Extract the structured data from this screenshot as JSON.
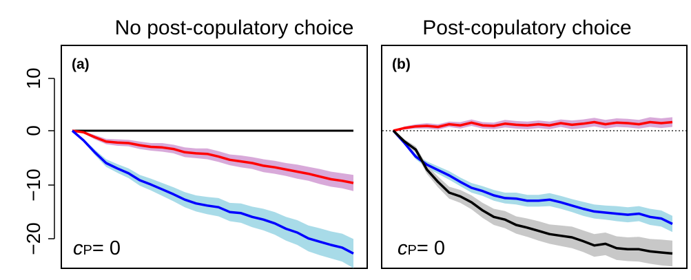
{
  "figure": {
    "y_tick_labels": [
      "10",
      "0",
      "−10",
      "−20"
    ]
  },
  "chart_data": [
    {
      "type": "line",
      "title": "No post-copulatory choice",
      "panel_label": "(a)",
      "annotation": {
        "symbol": "c",
        "subscript": "P",
        "value": "= 0"
      },
      "xlabel": "",
      "ylabel": "",
      "ylim": [
        -25,
        15
      ],
      "y_ticks": [
        10,
        0,
        -10,
        -20
      ],
      "x": [
        0,
        4,
        8,
        12,
        16,
        20,
        24,
        28,
        32,
        36,
        40,
        44,
        48,
        52,
        56,
        60,
        64,
        68,
        72,
        76,
        80,
        84,
        88,
        92,
        96,
        100
      ],
      "reference_line": {
        "y": 0,
        "style": "solid",
        "color": "#000000"
      },
      "series": [
        {
          "color": "#ff0000",
          "band_color": "#d8a9d9",
          "values": [
            0,
            -0.3,
            -1.2,
            -2.0,
            -2.2,
            -2.3,
            -2.7,
            -3.0,
            -3.1,
            -3.4,
            -4.0,
            -4.2,
            -4.3,
            -4.8,
            -5.4,
            -5.7,
            -6.0,
            -6.5,
            -6.8,
            -7.2,
            -7.6,
            -8.0,
            -8.5,
            -9.0,
            -9.3,
            -9.7
          ],
          "band_halfwidth": [
            0,
            0.2,
            0.4,
            0.5,
            0.6,
            0.6,
            0.7,
            0.7,
            0.8,
            0.8,
            0.9,
            0.9,
            1.0,
            1.0,
            1.0,
            1.1,
            1.1,
            1.2,
            1.2,
            1.2,
            1.3,
            1.3,
            1.4,
            1.4,
            1.4,
            1.5
          ]
        },
        {
          "color": "#0000ff",
          "band_color": "#a8dbe8",
          "values": [
            0,
            -1.8,
            -4.0,
            -6.0,
            -7.0,
            -7.9,
            -9.2,
            -10.0,
            -10.9,
            -11.8,
            -12.8,
            -13.5,
            -13.9,
            -14.2,
            -15.1,
            -15.3,
            -16.0,
            -16.5,
            -17.2,
            -18.2,
            -18.9,
            -20.0,
            -20.6,
            -21.2,
            -21.7,
            -22.8
          ],
          "band_halfwidth": [
            0,
            0.3,
            0.5,
            0.7,
            0.8,
            0.9,
            1.0,
            1.1,
            1.2,
            1.3,
            1.4,
            1.5,
            1.6,
            1.7,
            1.7,
            1.8,
            1.9,
            2.0,
            2.1,
            2.2,
            2.3,
            2.4,
            2.5,
            2.5,
            2.6,
            2.7
          ]
        }
      ]
    },
    {
      "type": "line",
      "title": "Post-copulatory choice",
      "panel_label": "(b)",
      "annotation": {
        "symbol": "c",
        "subscript": "P",
        "value": "= 0"
      },
      "xlabel": "",
      "ylabel": "",
      "ylim": [
        -25,
        15
      ],
      "y_ticks": [
        10,
        0,
        -10,
        -20
      ],
      "x": [
        0,
        4,
        8,
        12,
        16,
        20,
        24,
        28,
        32,
        36,
        40,
        44,
        48,
        52,
        56,
        60,
        64,
        68,
        72,
        76,
        80,
        84,
        88,
        92,
        96,
        100
      ],
      "reference_line": {
        "y": 0,
        "style": "dotted",
        "color": "#000000"
      },
      "series": [
        {
          "color": "#ff0000",
          "band_color": "#d8a9d9",
          "values": [
            0,
            0.5,
            0.8,
            0.9,
            0.7,
            1.2,
            1.0,
            1.5,
            1.0,
            0.9,
            1.3,
            1.1,
            1.0,
            1.2,
            1.0,
            1.4,
            1.1,
            1.3,
            1.6,
            1.2,
            1.5,
            1.4,
            1.2,
            1.6,
            1.4,
            1.6
          ],
          "band_halfwidth": [
            0,
            0.3,
            0.4,
            0.5,
            0.5,
            0.5,
            0.6,
            0.6,
            0.6,
            0.6,
            0.7,
            0.7,
            0.7,
            0.7,
            0.7,
            0.7,
            0.8,
            0.8,
            0.8,
            0.8,
            0.8,
            0.8,
            0.8,
            0.9,
            0.9,
            0.9
          ]
        },
        {
          "color": "#0000ff",
          "band_color": "#a8dbe8",
          "values": [
            0,
            -2.3,
            -4.8,
            -6.3,
            -7.3,
            -8.3,
            -9.5,
            -10.6,
            -11.2,
            -12.0,
            -12.5,
            -12.6,
            -13.0,
            -13.0,
            -12.8,
            -13.3,
            -13.9,
            -14.5,
            -15.0,
            -15.2,
            -15.4,
            -15.6,
            -15.4,
            -16.0,
            -16.3,
            -17.3
          ],
          "band_halfwidth": [
            0,
            0.3,
            0.5,
            0.6,
            0.7,
            0.8,
            0.8,
            0.9,
            0.9,
            1.0,
            1.0,
            1.1,
            1.1,
            1.1,
            1.2,
            1.2,
            1.2,
            1.3,
            1.3,
            1.3,
            1.4,
            1.4,
            1.4,
            1.5,
            1.5,
            1.5
          ]
        },
        {
          "color": "#000000",
          "band_color": "#c8c8c8",
          "values": [
            0,
            -2.0,
            -3.5,
            -7.2,
            -9.5,
            -11.5,
            -12.2,
            -13.3,
            -14.8,
            -16.0,
            -16.5,
            -17.5,
            -18.0,
            -18.6,
            -19.2,
            -19.5,
            -19.8,
            -20.5,
            -21.3,
            -21.0,
            -21.8,
            -22.0,
            -22.0,
            -22.4,
            -22.6,
            -22.8
          ],
          "band_halfwidth": [
            0,
            0.4,
            0.6,
            0.8,
            1.0,
            1.1,
            1.2,
            1.3,
            1.4,
            1.5,
            1.6,
            1.6,
            1.7,
            1.8,
            1.8,
            1.9,
            2.0,
            2.0,
            2.1,
            2.1,
            2.2,
            2.2,
            2.3,
            2.3,
            2.4,
            2.4
          ]
        }
      ]
    }
  ]
}
